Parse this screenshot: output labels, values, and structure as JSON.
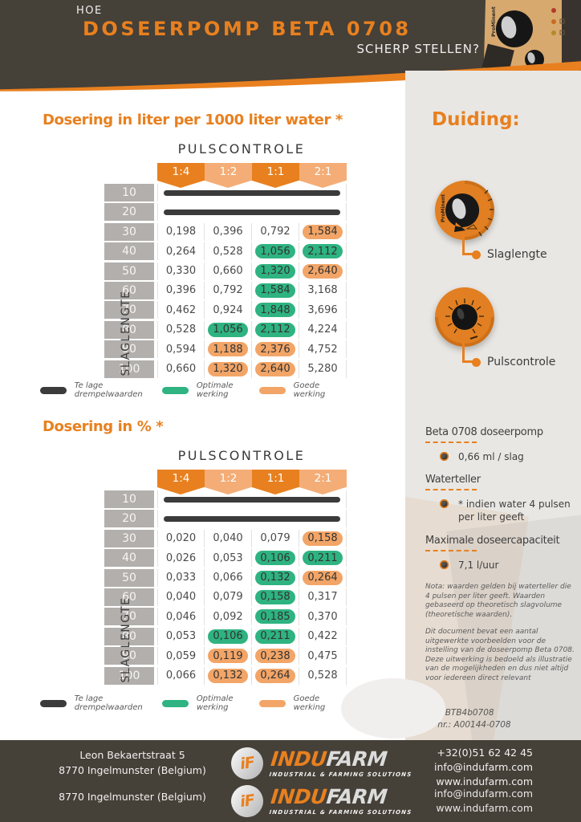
{
  "header": {
    "kicker": "HOE",
    "title": "DOSEERPOMP BETA 0708",
    "subtitle": "SCHERP STELLEN?",
    "device_brand": "ProMinent"
  },
  "colors": {
    "accent_orange": "#e8801f",
    "accent_orange_light": "#f4ad76",
    "pill_green": "#2eb381",
    "pill_orange": "#f2a567",
    "bar_black": "#3b3b3b",
    "dark_band": "#454038",
    "sidebar_bg": "#e9e7e4"
  },
  "legend": {
    "items": [
      {
        "label": "Te lage drempelwaarden",
        "color": "#3b3b3b"
      },
      {
        "label": "Optimale werking",
        "color": "#2eb381"
      },
      {
        "label": "Goede werking",
        "color": "#f2a567"
      }
    ]
  },
  "tables": [
    {
      "title": "Dosering in liter per 1000 liter water *",
      "group_header": "PULSCONTROLE",
      "row_axis_label": "SLAGLENGTE",
      "columns": [
        "1:4",
        "1:2",
        "1:1",
        "2:1"
      ],
      "rows": [
        {
          "label": "10",
          "type": "bar"
        },
        {
          "label": "20",
          "type": "bar"
        },
        {
          "label": "30",
          "cells": [
            {
              "v": "0,198"
            },
            {
              "v": "0,396"
            },
            {
              "v": "0,792"
            },
            {
              "v": "1,584",
              "tag": "good"
            }
          ]
        },
        {
          "label": "40",
          "cells": [
            {
              "v": "0,264"
            },
            {
              "v": "0,528"
            },
            {
              "v": "1,056",
              "tag": "optimal"
            },
            {
              "v": "2,112",
              "tag": "optimal"
            }
          ]
        },
        {
          "label": "50",
          "cells": [
            {
              "v": "0,330"
            },
            {
              "v": "0,660"
            },
            {
              "v": "1,320",
              "tag": "optimal"
            },
            {
              "v": "2,640",
              "tag": "good"
            }
          ]
        },
        {
          "label": "60",
          "cells": [
            {
              "v": "0,396"
            },
            {
              "v": "0,792"
            },
            {
              "v": "1,584",
              "tag": "optimal"
            },
            {
              "v": "3,168"
            }
          ]
        },
        {
          "label": "70",
          "cells": [
            {
              "v": "0,462"
            },
            {
              "v": "0,924"
            },
            {
              "v": "1,848",
              "tag": "optimal"
            },
            {
              "v": "3,696"
            }
          ]
        },
        {
          "label": "80",
          "cells": [
            {
              "v": "0,528"
            },
            {
              "v": "1,056",
              "tag": "optimal"
            },
            {
              "v": "2,112",
              "tag": "optimal"
            },
            {
              "v": "4,224"
            }
          ]
        },
        {
          "label": "90",
          "cells": [
            {
              "v": "0,594"
            },
            {
              "v": "1,188",
              "tag": "good"
            },
            {
              "v": "2,376",
              "tag": "good"
            },
            {
              "v": "4,752"
            }
          ]
        },
        {
          "label": "100",
          "cells": [
            {
              "v": "0,660"
            },
            {
              "v": "1,320",
              "tag": "good"
            },
            {
              "v": "2,640",
              "tag": "good"
            },
            {
              "v": "5,280"
            }
          ]
        }
      ]
    },
    {
      "title": "Dosering in % *",
      "group_header": "PULSCONTROLE",
      "row_axis_label": "SLAGLENGTE",
      "columns": [
        "1:4",
        "1:2",
        "1:1",
        "2:1"
      ],
      "rows": [
        {
          "label": "10",
          "type": "bar"
        },
        {
          "label": "20",
          "type": "bar"
        },
        {
          "label": "30",
          "cells": [
            {
              "v": "0,020"
            },
            {
              "v": "0,040"
            },
            {
              "v": "0,079"
            },
            {
              "v": "0,158",
              "tag": "good"
            }
          ]
        },
        {
          "label": "40",
          "cells": [
            {
              "v": "0,026"
            },
            {
              "v": "0,053"
            },
            {
              "v": "0,106",
              "tag": "optimal"
            },
            {
              "v": "0,211",
              "tag": "optimal"
            }
          ]
        },
        {
          "label": "50",
          "cells": [
            {
              "v": "0,033"
            },
            {
              "v": "0,066"
            },
            {
              "v": "0,132",
              "tag": "optimal"
            },
            {
              "v": "0,264",
              "tag": "good"
            }
          ]
        },
        {
          "label": "60",
          "cells": [
            {
              "v": "0,040"
            },
            {
              "v": "0,079"
            },
            {
              "v": "0,158",
              "tag": "optimal"
            },
            {
              "v": "0,317"
            }
          ]
        },
        {
          "label": "70",
          "cells": [
            {
              "v": "0,046"
            },
            {
              "v": "0,092"
            },
            {
              "v": "0,185",
              "tag": "optimal"
            },
            {
              "v": "0,370"
            }
          ]
        },
        {
          "label": "80",
          "cells": [
            {
              "v": "0,053"
            },
            {
              "v": "0,106",
              "tag": "optimal"
            },
            {
              "v": "0,211",
              "tag": "optimal"
            },
            {
              "v": "0,422"
            }
          ]
        },
        {
          "label": "90",
          "cells": [
            {
              "v": "0,059"
            },
            {
              "v": "0,119",
              "tag": "good"
            },
            {
              "v": "0,238",
              "tag": "good"
            },
            {
              "v": "0,475"
            }
          ]
        },
        {
          "label": "100",
          "cells": [
            {
              "v": "0,066"
            },
            {
              "v": "0,132",
              "tag": "good"
            },
            {
              "v": "0,264",
              "tag": "good"
            },
            {
              "v": "0,528"
            }
          ]
        }
      ]
    }
  ],
  "sidebar": {
    "heading": "Duiding:",
    "callouts": [
      {
        "label": "Slaglengte",
        "brand": "ProMinent"
      },
      {
        "label": "Pulscontrole"
      }
    ],
    "specs": [
      {
        "heading": "Beta 0708 doseerpomp",
        "items": [
          "0,66 ml / slag"
        ]
      },
      {
        "heading": "Waterteller",
        "items": [
          "* indien water 4 pulsen per liter geeft"
        ]
      },
      {
        "heading": "Maximale doseercapaciteit",
        "items": [
          "7,1 l/uur"
        ]
      }
    ],
    "notes": [
      "Nota: waarden gelden bij waterteller die 4 pulsen per liter geeft. Waarden gebaseerd op theoretisch slagvolume (theoretische waarden).",
      "Dit document bevat een aantal uitgewerkte voorbeelden voor de instelling van de doseerpomp Beta 0708. Deze uitwerking is bedoeld als illustratie van de mogelijkheden en dus niet altijd voor iedereen direct relevant"
    ],
    "type_line": "Type: BTB4b0708",
    "art_line": "Art. nr.: A00144-0708"
  },
  "footer": {
    "address": [
      "Leon Bekaertstraat 5",
      "8770 Ingelmunster (Belgium)"
    ],
    "address_repeat": "8770 Ingelmunster (Belgium)",
    "logo": {
      "monogram_i": "iF",
      "name_left": "INDU",
      "name_right": "FARM",
      "tagline": "INDUSTRIAL & FARMING SOLUTIONS"
    },
    "contacts": [
      "+32(0)51 62 42 45",
      "info@indufarm.com",
      "www.indufarm.com"
    ],
    "contacts_repeat": [
      "info@indufarm.com",
      "www.indufarm.com"
    ]
  }
}
